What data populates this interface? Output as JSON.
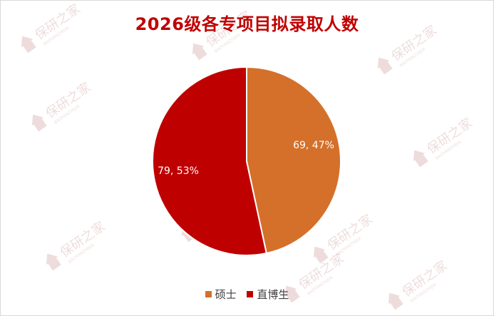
{
  "chart_data": {
    "type": "pie",
    "title": "2026级各专项目拟录取人数",
    "slices": [
      {
        "name": "硕士",
        "value": 69,
        "percent": 47,
        "label": "69, 47%",
        "color": "#d4702a"
      },
      {
        "name": "直博生",
        "value": 79,
        "percent": 53,
        "label": "79, 53%",
        "color": "#bf0000"
      }
    ],
    "legend_position": "bottom"
  },
  "watermark": {
    "text": "保研之家",
    "subtext": "BAOYANZHIJIA"
  }
}
